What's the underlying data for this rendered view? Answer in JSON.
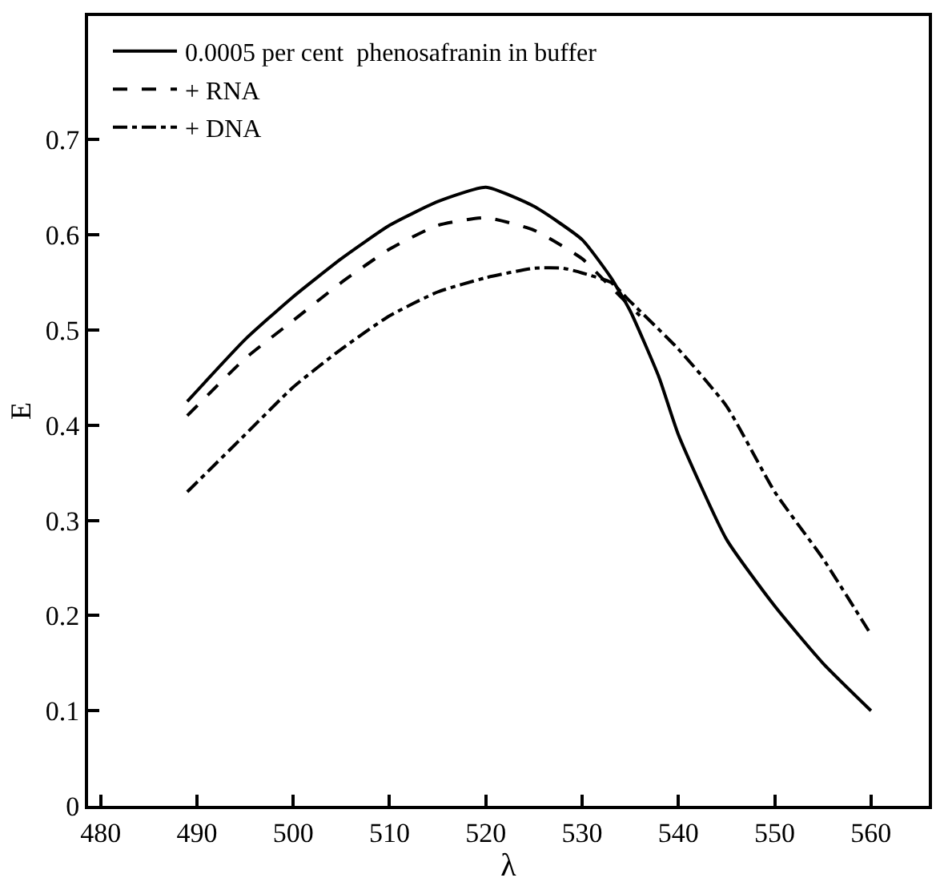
{
  "chart_data": {
    "type": "line",
    "xlabel": "λ",
    "ylabel": "E",
    "xlim": [
      478.7,
      566
    ],
    "ylim": [
      0,
      0.83
    ],
    "xticks": [
      480,
      490,
      500,
      510,
      520,
      530,
      540,
      550,
      560
    ],
    "yticks": [
      0,
      0.1,
      0.2,
      0.3,
      0.4,
      0.5,
      0.6,
      0.7
    ],
    "legend": "top left",
    "marker": "none",
    "series": [
      {
        "name": "0.0005 per cent  phenosafranin in buffer",
        "color": "#000000",
        "line_style": "solid",
        "x": [
          489,
          495,
          500,
          505,
          510,
          515,
          520,
          525,
          530,
          533,
          535,
          538,
          540,
          545,
          550,
          555,
          560
        ],
        "values": [
          0.425,
          0.49,
          0.535,
          0.575,
          0.61,
          0.635,
          0.65,
          0.63,
          0.595,
          0.555,
          0.52,
          0.45,
          0.39,
          0.28,
          0.21,
          0.15,
          0.1
        ]
      },
      {
        "name": "+ RNA",
        "color": "#000000",
        "line_style": "dashed",
        "x": [
          489,
          495,
          500,
          505,
          510,
          515,
          520,
          525,
          530,
          533,
          536
        ],
        "values": [
          0.41,
          0.47,
          0.51,
          0.55,
          0.585,
          0.61,
          0.618,
          0.605,
          0.575,
          0.545,
          0.515
        ]
      },
      {
        "name": "+ DNA",
        "color": "#000000",
        "line_style": "dashdot",
        "x": [
          489,
          495,
          500,
          505,
          510,
          515,
          520,
          525,
          528,
          530,
          533,
          535,
          540,
          545,
          550,
          555,
          560
        ],
        "values": [
          0.33,
          0.39,
          0.44,
          0.48,
          0.515,
          0.54,
          0.555,
          0.565,
          0.565,
          0.56,
          0.55,
          0.53,
          0.48,
          0.42,
          0.33,
          0.26,
          0.18
        ]
      }
    ]
  }
}
